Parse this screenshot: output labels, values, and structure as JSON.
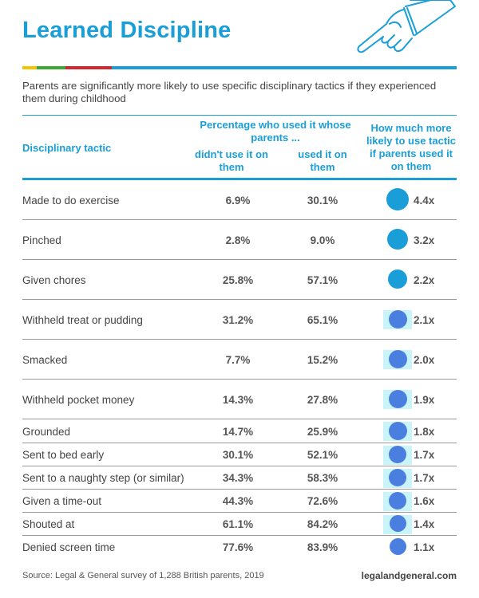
{
  "title": "Learned Discipline",
  "subtitle": "Parents are significantly more likely to use specific disciplinary tactics if they experienced them during childhood",
  "colors": {
    "accent": "#1a9ed8",
    "bar_yellow": "#f5c400",
    "bar_green": "#3aa935",
    "bar_red": "#d22630",
    "dot_blue": "#1a9ed8",
    "dot_indigo": "#4a7fe0",
    "box_cyan": "#c9f4fa"
  },
  "headers": {
    "tactic": "Disciplinary tactic",
    "group": "Percentage who used it whose parents ...",
    "didnt": "didn't use it on them",
    "used": "used it on them",
    "likely": "How much more likely to use tactic if parents used it on them"
  },
  "chart_data": {
    "type": "table",
    "title": "Learned Discipline",
    "columns": [
      "Disciplinary tactic",
      "didn't use it on them",
      "used it on them",
      "How much more likely to use tactic if parents used it on them"
    ],
    "rows": [
      {
        "tactic": "Made to do exercise",
        "didnt": "6.9%",
        "used": "30.1%",
        "ratio": "4.4x",
        "ratio_value": 4.4
      },
      {
        "tactic": "Pinched",
        "didnt": "2.8%",
        "used": "9.0%",
        "ratio": "3.2x",
        "ratio_value": 3.2
      },
      {
        "tactic": "Given chores",
        "didnt": "25.8%",
        "used": "57.1%",
        "ratio": "2.2x",
        "ratio_value": 2.2
      },
      {
        "tactic": "Withheld treat or pudding",
        "didnt": "31.2%",
        "used": "65.1%",
        "ratio": "2.1x",
        "ratio_value": 2.1
      },
      {
        "tactic": "Smacked",
        "didnt": "7.7%",
        "used": "15.2%",
        "ratio": "2.0x",
        "ratio_value": 2.0
      },
      {
        "tactic": "Withheld pocket money",
        "didnt": "14.3%",
        "used": "27.8%",
        "ratio": "1.9x",
        "ratio_value": 1.9
      },
      {
        "tactic": "Grounded",
        "didnt": "14.7%",
        "used": "25.9%",
        "ratio": "1.8x",
        "ratio_value": 1.8
      },
      {
        "tactic": "Sent to bed early",
        "didnt": "30.1%",
        "used": "52.1%",
        "ratio": "1.7x",
        "ratio_value": 1.7
      },
      {
        "tactic": "Sent to a naughty step (or similar)",
        "didnt": "34.3%",
        "used": "58.3%",
        "ratio": "1.7x",
        "ratio_value": 1.7
      },
      {
        "tactic": "Given a time-out",
        "didnt": "44.3%",
        "used": "72.6%",
        "ratio": "1.6x",
        "ratio_value": 1.6
      },
      {
        "tactic": "Shouted at",
        "didnt": "61.1%",
        "used": "84.2%",
        "ratio": "1.4x",
        "ratio_value": 1.4
      },
      {
        "tactic": "Denied screen time",
        "didnt": "77.6%",
        "used": "83.9%",
        "ratio": "1.1x",
        "ratio_value": 1.1
      }
    ]
  },
  "source": "Source: Legal & General survey of 1,288 British parents, 2019",
  "site": "legalandgeneral.com"
}
